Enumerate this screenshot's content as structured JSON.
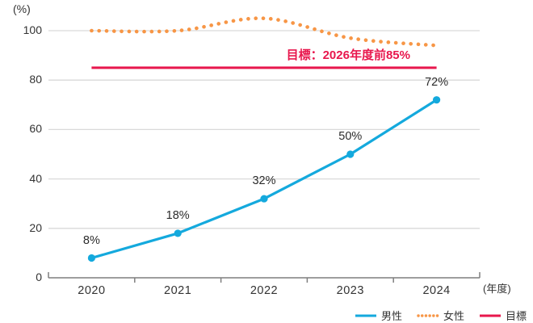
{
  "chart_data": {
    "type": "line",
    "title": "",
    "categories": [
      "2020",
      "2021",
      "2022",
      "2023",
      "2024"
    ],
    "y_unit": "(%)",
    "x_unit": "(年度)",
    "yticks": [
      0,
      20,
      40,
      60,
      80,
      100
    ],
    "ylim": [
      0,
      110
    ],
    "grid": true,
    "legend_position": "bottom-right",
    "colors": {
      "grid": "#d9d9d9",
      "axis": "#7f7f7f",
      "text": "#333333"
    },
    "series": [
      {
        "name": "男性",
        "style": "solid",
        "marker": "circle",
        "color": "#14a9dd",
        "values": [
          8,
          18,
          32,
          50,
          72
        ],
        "labels": [
          "8%",
          "18%",
          "32%",
          "50%",
          "72%"
        ]
      },
      {
        "name": "女性",
        "style": "dotted",
        "marker": "none",
        "color": "#f79646",
        "values": [
          100,
          100,
          105,
          97,
          94
        ]
      },
      {
        "name": "目標",
        "style": "solid",
        "marker": "none",
        "color": "#e8174d",
        "values": [
          85,
          85,
          85,
          85,
          85
        ],
        "annotation": "目標：2026年度前85%"
      }
    ]
  }
}
